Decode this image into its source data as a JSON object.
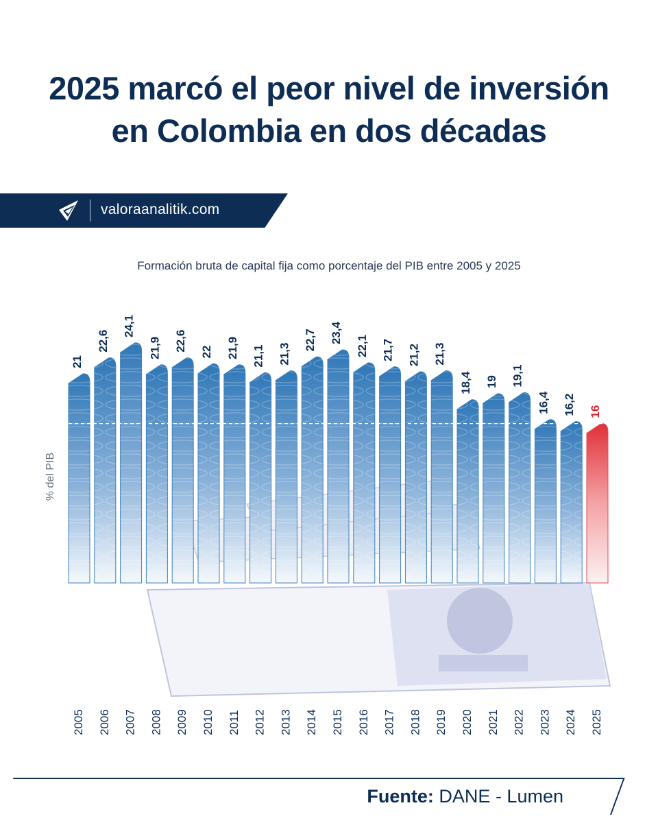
{
  "header": {
    "title_line1": "2025 marcó el peor nivel de inversión",
    "title_line2": "en Colombia en dos décadas"
  },
  "brand": {
    "logo_icon": "valora-analitik-logo-icon",
    "site": "valoraanalitik.com"
  },
  "colors": {
    "navy": "#0d2d54",
    "bar_blue": "#2f77b7",
    "highlight_red": "#e0303a"
  },
  "chart_data": {
    "type": "bar",
    "title": "Formación bruta de capital fija como porcentaje del PIB entre 2005 y 2025",
    "ylabel": "% del PIB",
    "xlabel": "",
    "categories": [
      "2005",
      "2006",
      "2007",
      "2008",
      "2009",
      "2010",
      "2011",
      "2012",
      "2013",
      "2014",
      "2015",
      "2016",
      "2017",
      "2018",
      "2019",
      "2020",
      "2021",
      "2022",
      "2023",
      "2024",
      "2025"
    ],
    "values": [
      21,
      22.6,
      24.1,
      21.9,
      22.6,
      22,
      21.9,
      21.1,
      21.3,
      22.7,
      23.4,
      22.1,
      21.7,
      21.2,
      21.3,
      18.4,
      19,
      19.1,
      16.4,
      16.2,
      16
    ],
    "value_labels": [
      "21",
      "22,6",
      "24,1",
      "21,9",
      "22,6",
      "22",
      "21,9",
      "21,1",
      "21,3",
      "22,7",
      "23,4",
      "22,1",
      "21,7",
      "21,2",
      "21,3",
      "18,4",
      "19",
      "19,1",
      "16,4",
      "16,2",
      "16"
    ],
    "highlight_category": "2025",
    "reference_line_value": 16,
    "grid": false,
    "legend": "none"
  },
  "footer": {
    "source_label": "Fuente:",
    "source_value": "DANE - Lumen"
  }
}
